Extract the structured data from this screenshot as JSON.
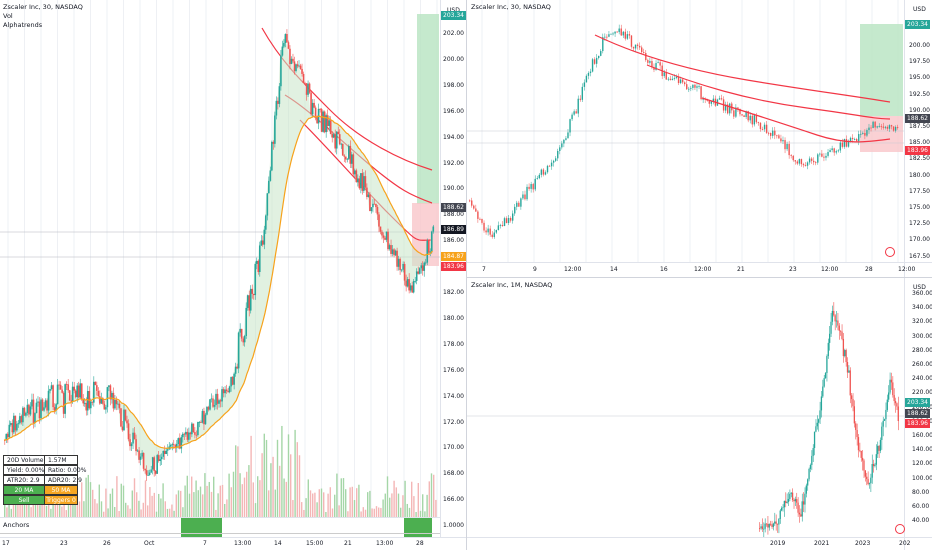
{
  "left": {
    "title": "Zscaler Inc, 30, NASDAQ",
    "vol": "Vol",
    "indicator": "Alphatrends",
    "usd": "USD",
    "y_ticks": [
      "202.00",
      "200.00",
      "198.00",
      "196.00",
      "194.00",
      "192.00",
      "190.00",
      "188.00",
      "186.00",
      "184.00",
      "182.00",
      "180.00",
      "178.00",
      "176.00",
      "174.00",
      "172.00",
      "170.00",
      "168.00",
      "166.00",
      "1.0000"
    ],
    "badges": {
      "top": "203.34",
      "last": "188.62",
      "cur": "186.89",
      "ma": "184.87",
      "low": "183.96"
    },
    "x_ticks": [
      "17",
      "23",
      "26",
      "Oct",
      "7",
      "13:00",
      "14",
      "15:00",
      "21",
      "13:00",
      "28"
    ],
    "anchors_label": "Anchors",
    "stats": {
      "volume_label": "20D Volume:",
      "volume_value": "1.57M",
      "yield_label": "Yield: 0.00%",
      "ratio_label": "Ratio: 0.00%",
      "atr_label": "ATR20: 2.9",
      "adr_label": "ADR20: 2.9",
      "ma20": "20 MA",
      "ma50": "50 MA",
      "state_a": "Sell",
      "state_b": "Triggers 0"
    }
  },
  "right_top": {
    "title": "Zscaler Inc, 30, NASDAQ",
    "usd": "USD",
    "y_ticks": [
      "200.00",
      "197.50",
      "195.00",
      "192.50",
      "190.00",
      "187.50",
      "185.00",
      "182.50",
      "180.00",
      "177.50",
      "175.00",
      "172.50",
      "170.00",
      "167.50"
    ],
    "badges": {
      "top": "203.34",
      "last": "188.62",
      "low": "183.96"
    },
    "x_ticks": [
      "7",
      "9",
      "12:00",
      "14",
      "16",
      "12:00",
      "21",
      "23",
      "12:00",
      "28",
      "12:00"
    ]
  },
  "right_bottom": {
    "title": "Zscaler Inc, 1M, NASDAQ",
    "usd": "USD",
    "y_ticks": [
      "360.00",
      "340.00",
      "320.00",
      "300.00",
      "280.00",
      "260.00",
      "240.00",
      "220.00",
      "200.00",
      "180.00",
      "160.00",
      "140.00",
      "120.00",
      "100.00",
      "80.00",
      "60.00",
      "40.00"
    ],
    "badges": {
      "top": "203.34",
      "last": "188.62",
      "low": "183.96"
    },
    "x_ticks": [
      "2019",
      "2021",
      "2023",
      "202"
    ]
  },
  "colors": {
    "up": "#26a69a",
    "down": "#ef5350",
    "red_line": "#f23645",
    "orange": "#f7a21b",
    "green_zone": "#b7e4c0",
    "red_zone": "#f9c5c9"
  }
}
